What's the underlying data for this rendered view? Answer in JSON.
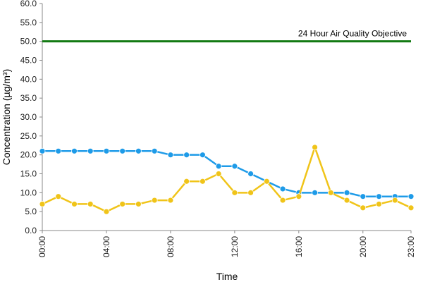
{
  "chart_data": {
    "type": "line",
    "title": "",
    "xlabel": "Time",
    "ylabel": "Concentration (µg/m³)",
    "ylim": [
      0,
      60
    ],
    "yticks": [
      "0.0",
      "5.0",
      "10.0",
      "15.0",
      "20.0",
      "25.0",
      "30.0",
      "35.0",
      "40.0",
      "45.0",
      "50.0",
      "55.0",
      "60.0"
    ],
    "ytick_values": [
      0,
      5,
      10,
      15,
      20,
      25,
      30,
      35,
      40,
      45,
      50,
      55,
      60
    ],
    "x": [
      "00:00",
      "01:00",
      "02:00",
      "03:00",
      "04:00",
      "05:00",
      "06:00",
      "07:00",
      "08:00",
      "09:00",
      "10:00",
      "11:00",
      "12:00",
      "13:00",
      "14:00",
      "15:00",
      "16:00",
      "17:00",
      "18:00",
      "19:00",
      "20:00",
      "21:00",
      "22:00",
      "23:00"
    ],
    "xtick_labels": [
      "00:00",
      "04:00",
      "08:00",
      "12:00",
      "16:00",
      "20:00",
      "23:00"
    ],
    "xtick_indices": [
      0,
      4,
      8,
      12,
      16,
      20,
      23
    ],
    "grid": false,
    "legend": "none",
    "series": [
      {
        "color": "#1e9be8",
        "values": [
          21,
          21,
          21,
          21,
          21,
          21,
          21,
          21,
          20,
          20,
          20,
          17,
          17,
          15,
          13,
          11,
          10,
          10,
          10,
          10,
          9,
          9,
          9,
          9
        ]
      },
      {
        "color": "#f0c419",
        "values": [
          7,
          9,
          7,
          7,
          5,
          7,
          7,
          8,
          8,
          13,
          13,
          15,
          10,
          10,
          13,
          8,
          9,
          22,
          10,
          8,
          6,
          7,
          8,
          6
        ]
      }
    ],
    "reference_line": {
      "value": 50,
      "label": "24 Hour Air Quality Objective",
      "color": "#137a13"
    }
  }
}
